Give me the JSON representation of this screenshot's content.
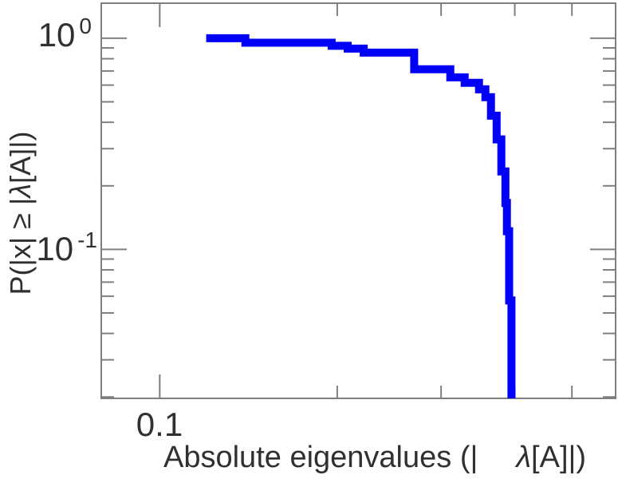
{
  "colors": {
    "background": "#ffffff",
    "frame": "#7f7f7f",
    "text": "#303030",
    "curve": "#0000fa"
  },
  "chart_data": {
    "type": "line",
    "subtype": "step-ccdf",
    "title": "",
    "x_scale": "log",
    "y_scale": "log",
    "grid": false,
    "legend": "none",
    "xlabel_prefix": "Absolute eigenvalues (|",
    "xlabel_lambda": "λ",
    "xlabel_suffix": "[A]|)",
    "ylabel_prefix": "P(|x| ≥ |",
    "ylabel_lambda": "λ",
    "ylabel_suffix": "[A]|)",
    "xlim": [
      0.0796,
      0.593
    ],
    "ylim": [
      0.0197,
      1.466
    ],
    "x_major_ticks": [
      {
        "value": 0.1,
        "label": "0.1"
      }
    ],
    "x_minor_ticks": [
      0.2,
      0.3,
      0.4,
      0.5
    ],
    "y_major_ticks": [
      {
        "value": 1.0,
        "label_base": "10",
        "label_exp": "0"
      },
      {
        "value": 0.1,
        "label_base": "10",
        "label_exp": "-1"
      }
    ],
    "y_minor_ticks": [
      0.9,
      0.8,
      0.7,
      0.6,
      0.5,
      0.4,
      0.3,
      0.2,
      0.09,
      0.08,
      0.07,
      0.06,
      0.05,
      0.04,
      0.03,
      0.02
    ],
    "series": [
      {
        "name": "eigenvalue-ccdf",
        "color": "#0000fa",
        "line_width": 10,
        "points": [
          [
            0.1199,
            1.0
          ],
          [
            0.1397,
            1.0
          ],
          [
            0.1397,
            0.953
          ],
          [
            0.1957,
            0.953
          ],
          [
            0.1957,
            0.921
          ],
          [
            0.2083,
            0.921
          ],
          [
            0.2083,
            0.893
          ],
          [
            0.2218,
            0.893
          ],
          [
            0.2218,
            0.855
          ],
          [
            0.2701,
            0.855
          ],
          [
            0.2701,
            0.713
          ],
          [
            0.311,
            0.713
          ],
          [
            0.311,
            0.653
          ],
          [
            0.3289,
            0.653
          ],
          [
            0.3289,
            0.615
          ],
          [
            0.3479,
            0.615
          ],
          [
            0.3479,
            0.573
          ],
          [
            0.3567,
            0.573
          ],
          [
            0.3567,
            0.526
          ],
          [
            0.3645,
            0.526
          ],
          [
            0.3645,
            0.43
          ],
          [
            0.3727,
            0.43
          ],
          [
            0.3727,
            0.332
          ],
          [
            0.3796,
            0.332
          ],
          [
            0.3796,
            0.234
          ],
          [
            0.3856,
            0.234
          ],
          [
            0.3856,
            0.166
          ],
          [
            0.3879,
            0.166
          ],
          [
            0.3879,
            0.122
          ],
          [
            0.3913,
            0.122
          ],
          [
            0.3913,
            0.0573
          ],
          [
            0.3949,
            0.0573
          ],
          [
            0.3949,
            0.019
          ]
        ]
      }
    ]
  }
}
